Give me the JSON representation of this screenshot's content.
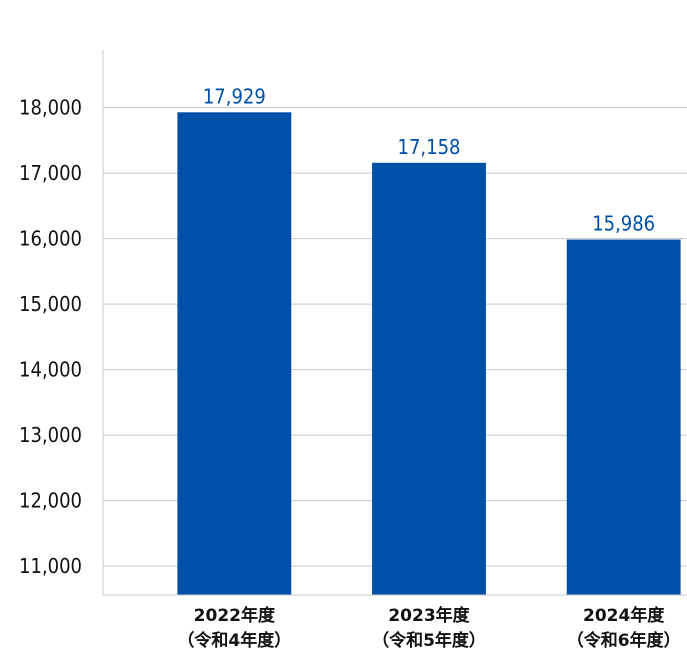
{
  "chart_data": {
    "type": "bar",
    "title": "",
    "xlabel": "",
    "ylabel": "",
    "categories": [
      [
        "2022年度",
        "（令和4年度）"
      ],
      [
        "2023年度",
        "（令和5年度）"
      ],
      [
        "2024年度",
        "（令和6年度）"
      ]
    ],
    "values": [
      17929,
      17158,
      15986
    ],
    "value_labels": [
      "17,929",
      "17,158",
      "15,986"
    ],
    "yticks": [
      11000,
      12000,
      13000,
      14000,
      15000,
      16000,
      17000,
      18000
    ],
    "ytick_labels": [
      "11,000",
      "12,000",
      "13,000",
      "14,000",
      "15,000",
      "16,000",
      "17,000",
      "18,000"
    ],
    "ylim": [
      10560,
      18880
    ],
    "grid": true,
    "bar_color": "#0050a8",
    "label_color": "#0050a8",
    "grid_color": "#c8c8c8"
  }
}
